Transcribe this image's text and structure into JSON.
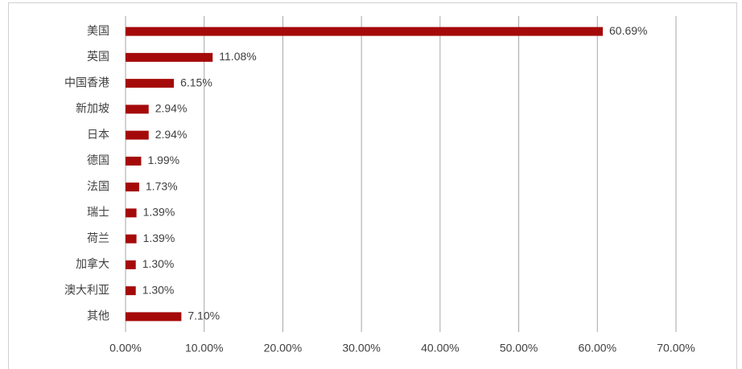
{
  "chart_data": {
    "type": "bar",
    "orientation": "horizontal",
    "categories": [
      "美国",
      "英国",
      "中国香港",
      "新加坡",
      "日本",
      "德国",
      "法国",
      "瑞士",
      "荷兰",
      "加拿大",
      "澳大利亚",
      "其他"
    ],
    "values": [
      60.69,
      11.08,
      6.15,
      2.94,
      2.94,
      1.99,
      1.73,
      1.39,
      1.39,
      1.3,
      1.3,
      7.1
    ],
    "value_labels": [
      "60.69%",
      "11.08%",
      "6.15%",
      "2.94%",
      "2.94%",
      "1.99%",
      "1.73%",
      "1.39%",
      "1.39%",
      "1.30%",
      "1.30%",
      "7.10%"
    ],
    "color": "#a50a0a",
    "xlim": [
      0,
      70
    ],
    "xticks": [
      {
        "value": 0,
        "label": "0.00%"
      },
      {
        "value": 10,
        "label": "10.00%"
      },
      {
        "value": 20,
        "label": "20.00%"
      },
      {
        "value": 30,
        "label": "30.00%"
      },
      {
        "value": 40,
        "label": "40.00%"
      },
      {
        "value": 50,
        "label": "50.00%"
      },
      {
        "value": 60,
        "label": "60.00%"
      },
      {
        "value": 70,
        "label": "70.00%"
      }
    ],
    "grid": true
  }
}
